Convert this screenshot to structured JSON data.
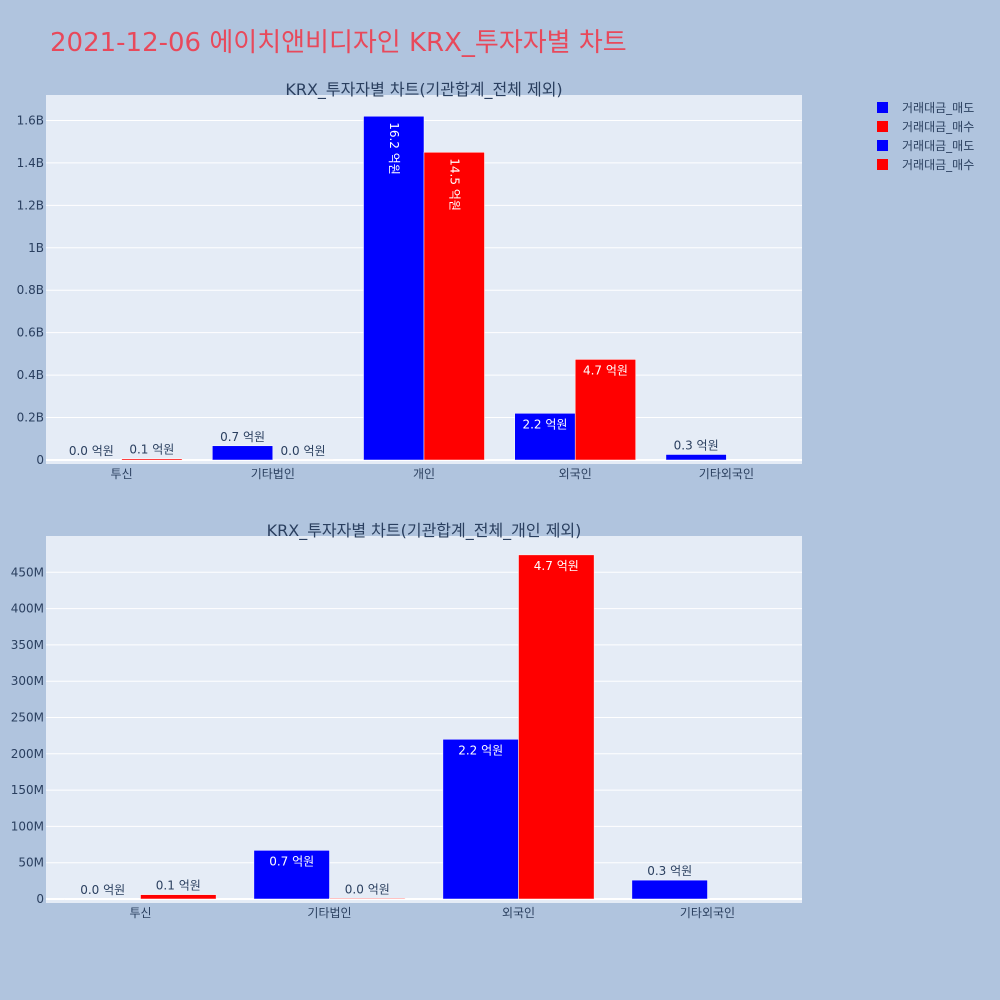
{
  "page": {
    "title": "2021-12-06 에이치앤비디자인 KRX_투자자별 차트"
  },
  "legend": {
    "items": [
      {
        "label": "거래대금_매도",
        "color": "#0000ff"
      },
      {
        "label": "거래대금_매수",
        "color": "#ff0000"
      },
      {
        "label": "거래대금_매도",
        "color": "#0000ff"
      },
      {
        "label": "거래대금_매수",
        "color": "#ff0000"
      }
    ]
  },
  "chart_data": [
    {
      "type": "bar",
      "title": "KRX_투자자별 차트(기관합계_전체 제외)",
      "categories": [
        "투신",
        "기타법인",
        "개인",
        "외국인",
        "기타외국인"
      ],
      "series": [
        {
          "name": "거래대금_매도",
          "color": "#0000ff",
          "values": [
            0,
            67000000,
            1620000000,
            220000000,
            26000000
          ],
          "labels": [
            "0.0 억원",
            "0.7 억원",
            "16.2 억원",
            "2.2 억원",
            "0.3 억원"
          ]
        },
        {
          "name": "거래대금_매수",
          "color": "#ff0000",
          "values": [
            6000000,
            1000000,
            1450000000,
            474000000,
            null
          ],
          "labels": [
            "0.1 억원",
            "0.0 억원",
            "14.5 억원",
            "4.7 억원",
            null
          ]
        }
      ],
      "ylim": [
        0,
        1720000000
      ],
      "yticks": [
        0,
        200000000,
        400000000,
        600000000,
        800000000,
        1000000000,
        1200000000,
        1400000000,
        1600000000
      ],
      "ytick_labels": [
        "0",
        "0.2B",
        "0.4B",
        "0.6B",
        "0.8B",
        "1B",
        "1.2B",
        "1.4B",
        "1.6B"
      ],
      "xlabel": "",
      "ylabel": "",
      "grid": true
    },
    {
      "type": "bar",
      "title": "KRX_투자자별 차트(기관합계_전체_개인 제외)",
      "categories": [
        "투신",
        "기타법인",
        "외국인",
        "기타외국인"
      ],
      "series": [
        {
          "name": "거래대금_매도",
          "color": "#0000ff",
          "values": [
            0,
            67000000,
            220000000,
            26000000
          ],
          "labels": [
            "0.0 억원",
            "0.7 억원",
            "2.2 억원",
            "0.3 억원"
          ]
        },
        {
          "name": "거래대금_매수",
          "color": "#ff0000",
          "values": [
            6000000,
            1000000,
            474000000,
            null
          ],
          "labels": [
            "0.1 억원",
            "0.0 억원",
            "4.7 억원",
            null
          ]
        }
      ],
      "ylim": [
        0,
        500000000
      ],
      "yticks": [
        0,
        50000000,
        100000000,
        150000000,
        200000000,
        250000000,
        300000000,
        350000000,
        400000000,
        450000000
      ],
      "ytick_labels": [
        "0",
        "50M",
        "100M",
        "150M",
        "200M",
        "250M",
        "300M",
        "350M",
        "400M",
        "450M"
      ],
      "xlabel": "",
      "ylabel": "",
      "grid": true
    }
  ]
}
